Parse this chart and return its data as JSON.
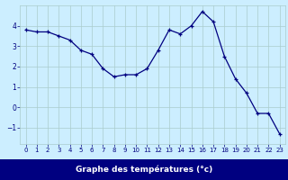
{
  "hours": [
    0,
    1,
    2,
    3,
    4,
    5,
    6,
    7,
    8,
    9,
    10,
    11,
    12,
    13,
    14,
    15,
    16,
    17,
    18,
    19,
    20,
    21,
    22,
    23
  ],
  "temperatures": [
    3.8,
    3.7,
    3.7,
    3.5,
    3.3,
    2.8,
    2.6,
    1.9,
    1.5,
    1.6,
    1.6,
    1.9,
    2.8,
    3.8,
    3.6,
    4.0,
    4.7,
    4.2,
    2.5,
    1.4,
    0.7,
    -0.3,
    -0.3,
    -1.3
  ],
  "bg_color": "#cceeff",
  "line_color": "#000080",
  "grid_color": "#aacccc",
  "xlabel": "Graphe des températures (°c)",
  "xlabel_bg": "#000080",
  "xlabel_fg": "#ffffff",
  "ylim": [
    -1.8,
    5.0
  ],
  "yticks": [
    -1,
    0,
    1,
    2,
    3,
    4
  ],
  "xlim": [
    -0.5,
    23.5
  ],
  "xticks": [
    0,
    1,
    2,
    3,
    4,
    5,
    6,
    7,
    8,
    9,
    10,
    11,
    12,
    13,
    14,
    15,
    16,
    17,
    18,
    19,
    20,
    21,
    22,
    23
  ]
}
